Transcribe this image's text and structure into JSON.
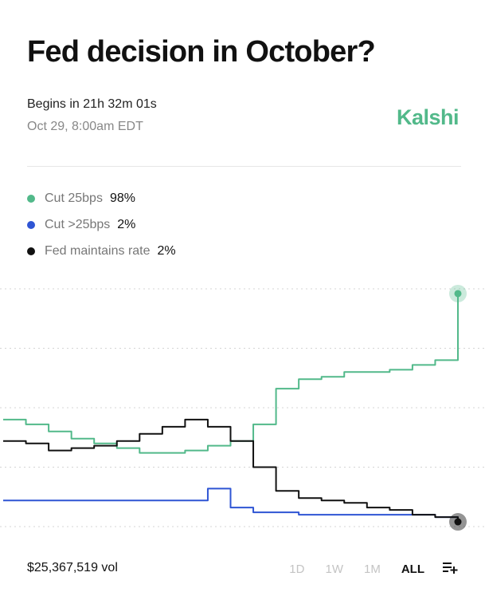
{
  "market": {
    "title": "Fed decision in October?",
    "begins": "Begins in 21h 32m 01s",
    "date": "Oct 29, 8:00am EDT",
    "brand": "Kalshi"
  },
  "legend": [
    {
      "name": "Cut 25bps",
      "pct": "98%",
      "color": "#52b98a"
    },
    {
      "name": "Cut >25bps",
      "pct": "2%",
      "color": "#2f55d4"
    },
    {
      "name": "Fed maintains rate",
      "pct": "2%",
      "color": "#111111"
    }
  ],
  "chart_data": {
    "type": "line",
    "x": [
      0,
      5,
      10,
      15,
      20,
      25,
      30,
      35,
      40,
      45,
      50,
      55,
      60,
      65,
      70,
      75,
      80,
      85,
      90,
      95,
      100
    ],
    "ylim": [
      0,
      100
    ],
    "grid": true,
    "series": [
      {
        "name": "Cut 25bps",
        "color": "#52b98a",
        "values": [
          45,
          43,
          40,
          37,
          35,
          33,
          31,
          31,
          32,
          34,
          36,
          43,
          58,
          62,
          63,
          65,
          65,
          66,
          68,
          70,
          98
        ]
      },
      {
        "name": "Cut >25bps",
        "color": "#2f55d4",
        "values": [
          11,
          11,
          11,
          11,
          11,
          11,
          11,
          11,
          11,
          16,
          8,
          6,
          6,
          5,
          5,
          5,
          5,
          5,
          5,
          4,
          2
        ]
      },
      {
        "name": "Fed maintains rate",
        "color": "#111111",
        "values": [
          36,
          35,
          32,
          33,
          34,
          36,
          39,
          42,
          45,
          42,
          36,
          25,
          15,
          12,
          11,
          10,
          8,
          7,
          5,
          4,
          2
        ]
      }
    ]
  },
  "footer": {
    "volume": "$25,367,519 vol",
    "ranges": [
      "1D",
      "1W",
      "1M",
      "ALL"
    ],
    "active_range": "ALL"
  },
  "icons": {
    "add_to_list": "playlist-add-icon"
  }
}
